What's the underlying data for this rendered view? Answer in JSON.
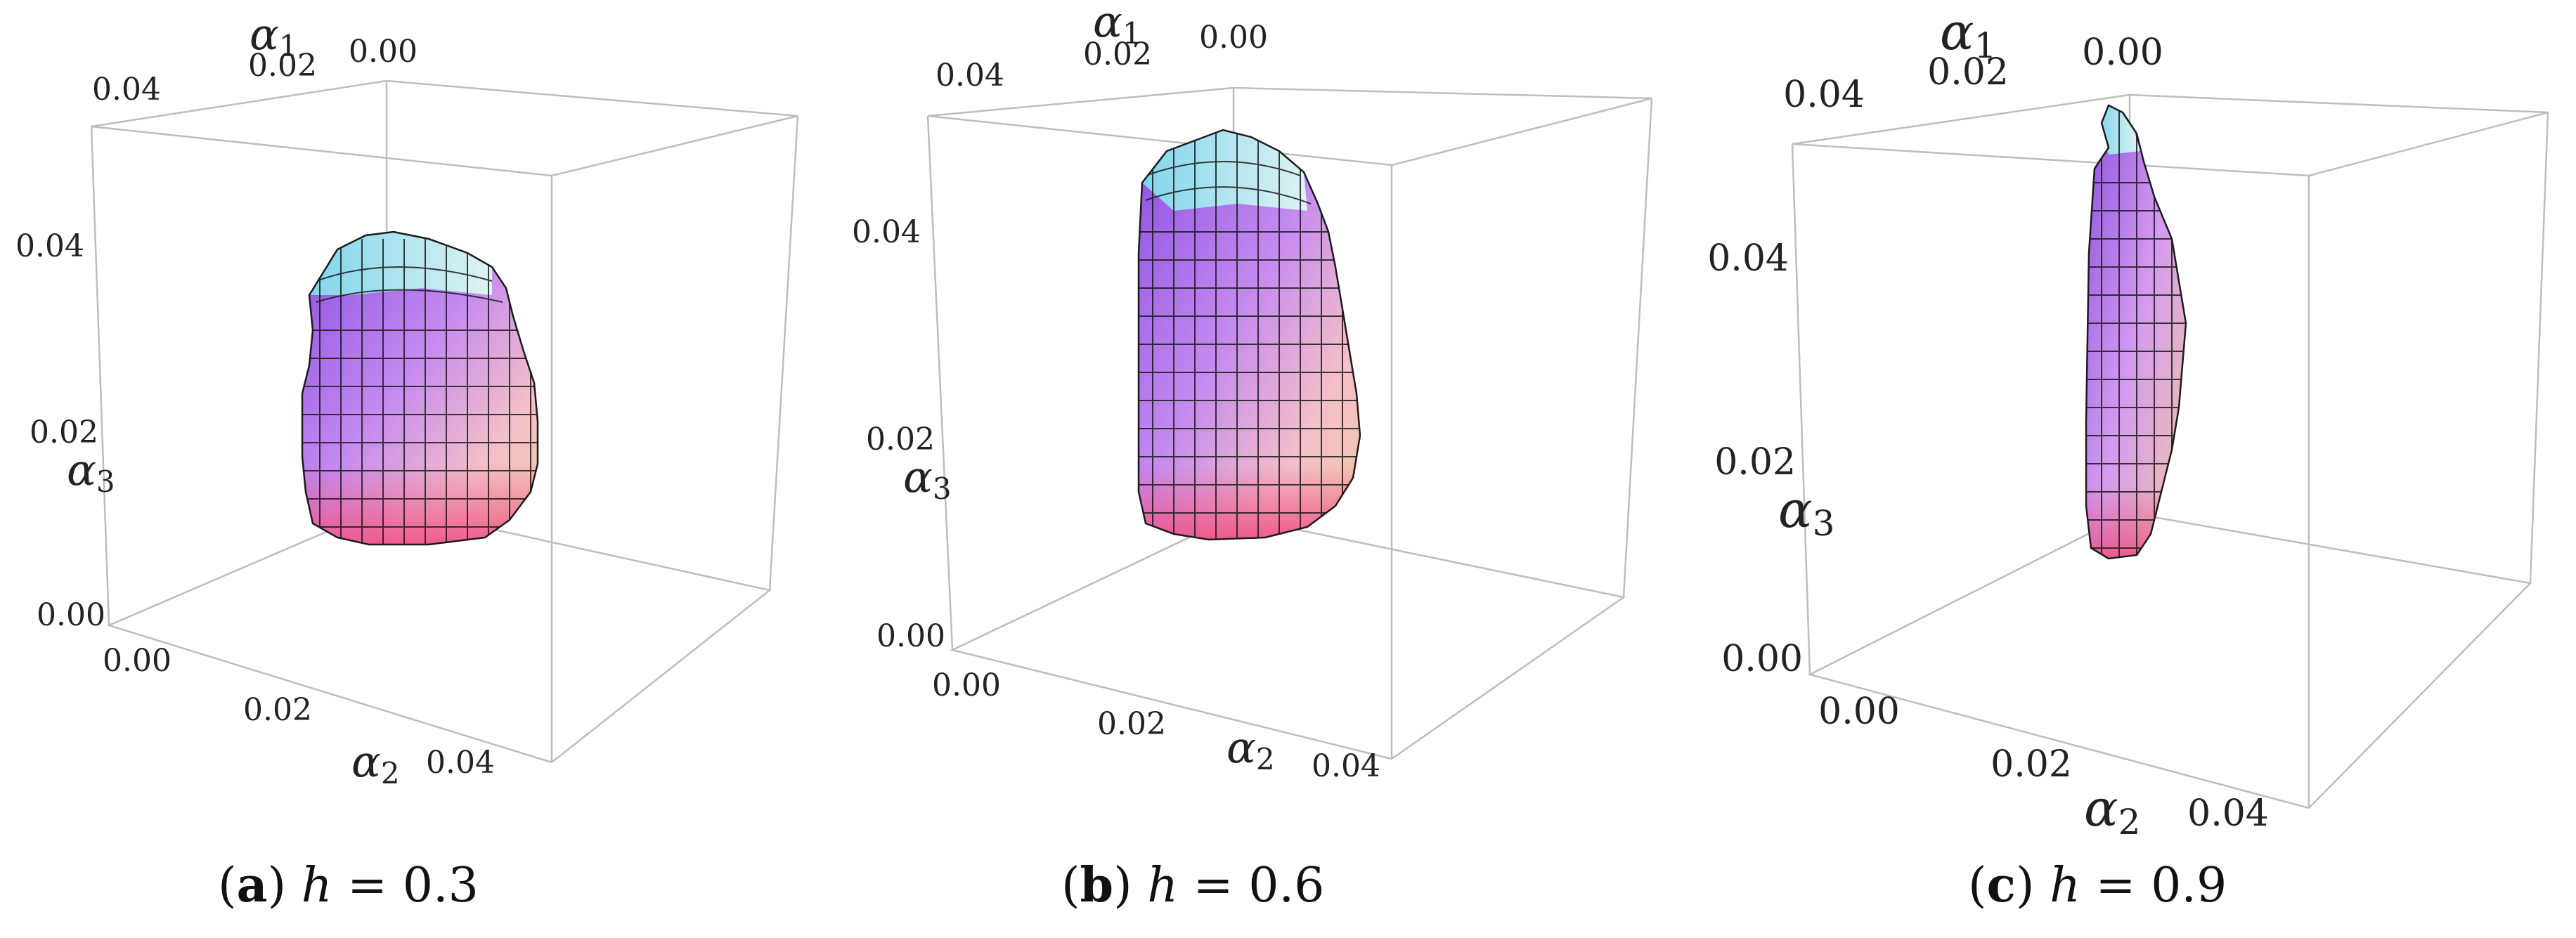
{
  "figure": {
    "panels": [
      {
        "id": "a",
        "caption": {
          "open": "(",
          "letter": "a",
          "close": ")",
          "var": "h",
          "eq": " = ",
          "val": "0.3"
        },
        "axes": {
          "a1": {
            "sym": "α",
            "sub": "1",
            "ticks": [
              "0.04",
              "0.02",
              "0.00"
            ]
          },
          "a2": {
            "sym": "α",
            "sub": "2",
            "ticks": [
              "0.00",
              "0.02",
              "0.04"
            ]
          },
          "a3": {
            "sym": "α",
            "sub": "3",
            "ticks": [
              "0.04",
              "0.02",
              "0.00"
            ]
          }
        }
      },
      {
        "id": "b",
        "caption": {
          "open": "(",
          "letter": "b",
          "close": ")",
          "var": "h",
          "eq": " = ",
          "val": "0.6"
        },
        "axes": {
          "a1": {
            "sym": "α",
            "sub": "1",
            "ticks": [
              "0.04",
              "0.02",
              "0.00"
            ]
          },
          "a2": {
            "sym": "α",
            "sub": "2",
            "ticks": [
              "0.00",
              "0.02",
              "0.04"
            ]
          },
          "a3": {
            "sym": "α",
            "sub": "3",
            "ticks": [
              "0.04",
              "0.02",
              "0.00"
            ]
          }
        }
      },
      {
        "id": "c",
        "caption": {
          "open": "(",
          "letter": "c",
          "close": ")",
          "var": "h",
          "eq": " = ",
          "val": "0.9"
        },
        "axes": {
          "a1": {
            "sym": "α",
            "sub": "1",
            "ticks": [
              "0.04",
              "0.02",
              "0.00"
            ]
          },
          "a2": {
            "sym": "α",
            "sub": "2",
            "ticks": [
              "0.00",
              "0.02",
              "0.04"
            ]
          },
          "a3": {
            "sym": "α",
            "sub": "3",
            "ticks": [
              "0.04",
              "0.02",
              "0.00"
            ]
          }
        }
      }
    ],
    "colors": {
      "box": "#bdbdbd",
      "mesh": "#1b1b1b",
      "surface_top": "#7fd6ec",
      "surface_left": "#8a4fe0",
      "surface_right": "#f2c9a4",
      "surface_bottom": "#ee4f86"
    }
  }
}
